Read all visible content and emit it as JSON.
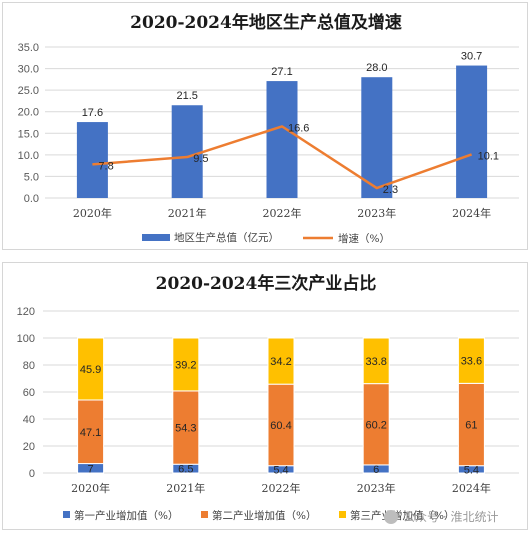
{
  "colors": {
    "blue": "#4472C4",
    "orange": "#ED7D31",
    "yellow": "#FFC000",
    "grid": "#d9d9d9"
  },
  "watermark": {
    "icon": "wechat-icon",
    "text": "公众号 · 淮北统计"
  },
  "chart_data": [
    {
      "type": "bar",
      "title": "2020-2024年地区生产总值及增速",
      "categories": [
        "2020年",
        "2021年",
        "2022年",
        "2023年",
        "2024年"
      ],
      "ylim": [
        0,
        35
      ],
      "yticks": [
        "0.0",
        "5.0",
        "10.0",
        "15.0",
        "20.0",
        "25.0",
        "30.0",
        "35.0"
      ],
      "grid": true,
      "legend_position": "bottom",
      "series": [
        {
          "name": "地区生产总值（亿元）",
          "type": "bar",
          "values": [
            17.6,
            21.5,
            27.1,
            28.0,
            30.7
          ],
          "labels": [
            "17.6",
            "21.5",
            "27.1",
            "28.0",
            "30.7"
          ]
        },
        {
          "name": "增速（%）",
          "type": "line",
          "values": [
            7.8,
            9.5,
            16.6,
            2.3,
            10.1
          ],
          "labels": [
            "7.8",
            "9.5",
            "16.6",
            "2.3",
            "10.1"
          ]
        }
      ]
    },
    {
      "type": "bar",
      "stacked": true,
      "title": "2020-2024年三次产业占比",
      "categories": [
        "2020年",
        "2021年",
        "2022年",
        "2023年",
        "2024年"
      ],
      "ylim": [
        0,
        120
      ],
      "yticks": [
        "0",
        "20",
        "40",
        "60",
        "80",
        "100",
        "120"
      ],
      "grid": true,
      "legend_position": "bottom",
      "series": [
        {
          "name": "第一产业增加值（%）",
          "values": [
            7,
            6.5,
            5.4,
            6,
            5.4
          ],
          "labels": [
            "7",
            "6.5",
            "5.4",
            "6",
            "5.4"
          ]
        },
        {
          "name": "第二产业增加值（%）",
          "values": [
            47.1,
            54.3,
            60.4,
            60.2,
            61
          ],
          "labels": [
            "47.1",
            "54.3",
            "60.4",
            "60.2",
            "61"
          ]
        },
        {
          "name": "第三产业增加值（%）",
          "values": [
            45.9,
            39.2,
            34.2,
            33.8,
            33.6
          ],
          "labels": [
            "45.9",
            "39.2",
            "34.2",
            "33.8",
            "33.6"
          ]
        }
      ]
    }
  ]
}
